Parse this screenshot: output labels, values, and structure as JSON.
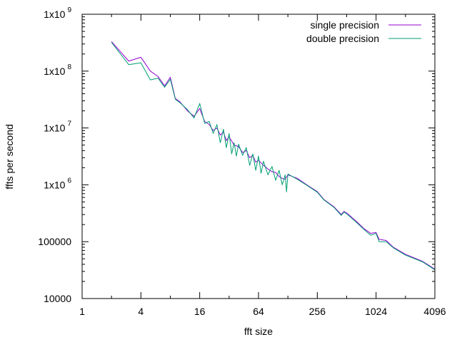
{
  "chart_data": {
    "type": "line",
    "title": "",
    "xlabel": "fft size",
    "ylabel": "ffts per second",
    "x_scale": "log2",
    "y_scale": "log10",
    "xlim": [
      1,
      4096
    ],
    "ylim": [
      10000,
      1000000000
    ],
    "x_ticks": [
      1,
      4,
      16,
      64,
      256,
      1024,
      4096
    ],
    "x_tick_labels": [
      "1",
      "4",
      "16",
      "64",
      "256",
      "1024",
      "4096"
    ],
    "y_ticks": [
      10000,
      100000,
      1000000,
      10000000,
      100000000,
      1000000000
    ],
    "y_tick_labels": [
      {
        "base": "10000",
        "exp": ""
      },
      {
        "base": "100000",
        "exp": ""
      },
      {
        "base": "1x10",
        "exp": "6"
      },
      {
        "base": "1x10",
        "exp": "7"
      },
      {
        "base": "1x10",
        "exp": "8"
      },
      {
        "base": "1x10",
        "exp": "9"
      }
    ],
    "legend_position": "top-right",
    "series": [
      {
        "name": "single precision",
        "color": "#9400d3",
        "points": [
          [
            2,
            330000000
          ],
          [
            3,
            150000000
          ],
          [
            4,
            175000000
          ],
          [
            5,
            100000000
          ],
          [
            6,
            80000000
          ],
          [
            7,
            55000000
          ],
          [
            8,
            78000000
          ],
          [
            9,
            33000000
          ],
          [
            10,
            29000000
          ],
          [
            12,
            20000000
          ],
          [
            14,
            16000000
          ],
          [
            16,
            22000000
          ],
          [
            18,
            13000000
          ],
          [
            20,
            11500000
          ],
          [
            22,
            9000000
          ],
          [
            24,
            10000000
          ],
          [
            26,
            7500000
          ],
          [
            28,
            8500000
          ],
          [
            30,
            6000000
          ],
          [
            32,
            7000000
          ],
          [
            36,
            5000000
          ],
          [
            40,
            4700000
          ],
          [
            44,
            3700000
          ],
          [
            48,
            4000000
          ],
          [
            52,
            3000000
          ],
          [
            56,
            3300000
          ],
          [
            60,
            2500000
          ],
          [
            64,
            2700000
          ],
          [
            72,
            2200000
          ],
          [
            80,
            1900000
          ],
          [
            88,
            1700000
          ],
          [
            96,
            1650000
          ],
          [
            104,
            1400000
          ],
          [
            112,
            1300000
          ],
          [
            120,
            1250000
          ],
          [
            128,
            1500000
          ],
          [
            160,
            1300000
          ],
          [
            200,
            1000000
          ],
          [
            256,
            760000
          ],
          [
            300,
            550000
          ],
          [
            380,
            410000
          ],
          [
            450,
            300000
          ],
          [
            480,
            340000
          ],
          [
            512,
            320000
          ],
          [
            640,
            230000
          ],
          [
            768,
            170000
          ],
          [
            900,
            140000
          ],
          [
            1024,
            145000
          ],
          [
            1100,
            110000
          ],
          [
            1300,
            105000
          ],
          [
            1536,
            80000
          ],
          [
            2048,
            60000
          ],
          [
            3072,
            45000
          ],
          [
            4096,
            33000
          ]
        ]
      },
      {
        "name": "double precision",
        "color": "#009e73",
        "points": [
          [
            2,
            320000000
          ],
          [
            3,
            130000000
          ],
          [
            4,
            140000000
          ],
          [
            5,
            70000000
          ],
          [
            6,
            75000000
          ],
          [
            7,
            52000000
          ],
          [
            8,
            72000000
          ],
          [
            9,
            32000000
          ],
          [
            10,
            28000000
          ],
          [
            12,
            21000000
          ],
          [
            14,
            15000000
          ],
          [
            16,
            27000000
          ],
          [
            18,
            12000000
          ],
          [
            20,
            13000000
          ],
          [
            22,
            8000000
          ],
          [
            24,
            11500000
          ],
          [
            26,
            5500000
          ],
          [
            28,
            9500000
          ],
          [
            30,
            4500000
          ],
          [
            32,
            8000000
          ],
          [
            34,
            3500000
          ],
          [
            36,
            5500000
          ],
          [
            38,
            3200000
          ],
          [
            40,
            5200000
          ],
          [
            44,
            3300000
          ],
          [
            48,
            4500000
          ],
          [
            52,
            2200000
          ],
          [
            56,
            3500000
          ],
          [
            60,
            1800000
          ],
          [
            64,
            3200000
          ],
          [
            68,
            1600000
          ],
          [
            72,
            2600000
          ],
          [
            80,
            1500000
          ],
          [
            88,
            2100000
          ],
          [
            96,
            1200000
          ],
          [
            104,
            1800000
          ],
          [
            112,
            1000000
          ],
          [
            120,
            1500000
          ],
          [
            124,
            750000
          ],
          [
            128,
            1550000
          ],
          [
            160,
            1250000
          ],
          [
            200,
            980000
          ],
          [
            256,
            740000
          ],
          [
            300,
            540000
          ],
          [
            380,
            400000
          ],
          [
            450,
            290000
          ],
          [
            480,
            330000
          ],
          [
            512,
            310000
          ],
          [
            640,
            220000
          ],
          [
            768,
            165000
          ],
          [
            900,
            130000
          ],
          [
            1024,
            140000
          ],
          [
            1100,
            100000
          ],
          [
            1300,
            100000
          ],
          [
            1536,
            78000
          ],
          [
            2048,
            58000
          ],
          [
            3072,
            44000
          ],
          [
            4096,
            32000
          ]
        ]
      }
    ]
  }
}
